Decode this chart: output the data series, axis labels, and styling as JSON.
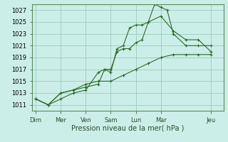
{
  "title": "",
  "xlabel": "Pression niveau de la mer( hPa )",
  "ylabel": "",
  "ylim": [
    1010,
    1028
  ],
  "yticks": [
    1011,
    1013,
    1015,
    1017,
    1019,
    1021,
    1023,
    1025,
    1027
  ],
  "background_color": "#cceee8",
  "grid_color": "#99ccbb",
  "line_color": "#2d6a2d",
  "day_labels": [
    "Dim",
    "Mer",
    "Ven",
    "Sam",
    "Lun",
    "Mar",
    "Jeu"
  ],
  "day_positions": [
    0,
    2,
    4,
    6,
    8,
    10,
    14
  ],
  "xlim": [
    -0.3,
    15
  ],
  "series": [
    {
      "x": [
        0,
        1,
        2,
        3,
        4,
        5,
        5.5,
        6,
        6.5,
        7,
        7.5,
        8,
        8.5,
        9,
        9.5,
        10,
        10.5,
        11,
        12,
        13,
        14
      ],
      "y": [
        1012,
        1011,
        1012,
        1013,
        1013.5,
        1016.5,
        1017,
        1016.5,
        1020.5,
        1021,
        1024,
        1024.5,
        1024.5,
        1025,
        1028,
        1027.5,
        1027,
        1023,
        1021,
        1021,
        1021
      ]
    },
    {
      "x": [
        0,
        1,
        2,
        3,
        4,
        5,
        5.5,
        6,
        6.5,
        7,
        7.5,
        8,
        8.5,
        9,
        10,
        11,
        12,
        13,
        14
      ],
      "y": [
        1012,
        1011,
        1013,
        1013.5,
        1014,
        1014.5,
        1017,
        1017,
        1020,
        1020.5,
        1020.5,
        1021.5,
        1022,
        1025,
        1026,
        1023.5,
        1022,
        1022,
        1020
      ]
    },
    {
      "x": [
        0,
        1,
        2,
        3,
        4,
        5,
        6,
        7,
        8,
        9,
        10,
        11,
        12,
        13,
        14
      ],
      "y": [
        1012,
        1011,
        1013,
        1013.5,
        1014.5,
        1015,
        1015,
        1016,
        1017,
        1018,
        1019,
        1019.5,
        1019.5,
        1019.5,
        1019.5
      ]
    }
  ]
}
